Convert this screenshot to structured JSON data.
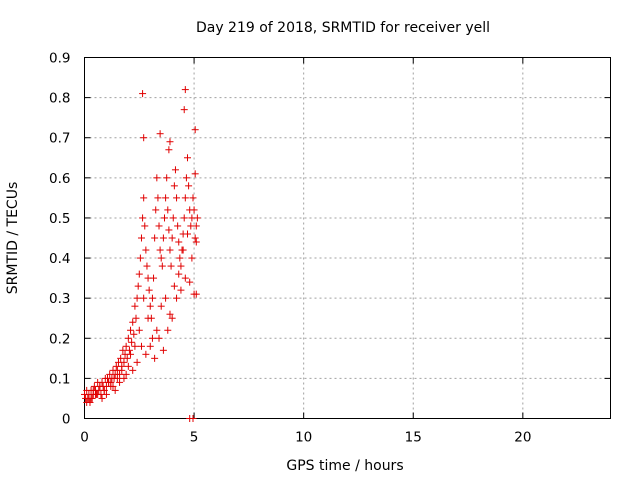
{
  "chart_data": {
    "type": "scatter",
    "title": "Day 219 of 2018, SRMTID for receiver yell",
    "xlabel": "GPS time / hours",
    "ylabel": "SRMTID / TECUs",
    "xlim": [
      0,
      24
    ],
    "ylim": [
      0,
      0.9
    ],
    "xticks": [
      0,
      5,
      10,
      15,
      20
    ],
    "yticks": [
      0,
      0.1,
      0.2,
      0.3,
      0.4,
      0.5,
      0.6,
      0.7,
      0.8,
      0.9
    ],
    "grid": true,
    "marker": "+",
    "color": "#e00000",
    "series": [
      {
        "name": "SRMTID",
        "x": [
          0.0,
          0.05,
          0.1,
          0.15,
          0.2,
          0.25,
          0.3,
          0.35,
          0.4,
          0.45,
          0.5,
          0.55,
          0.6,
          0.65,
          0.7,
          0.75,
          0.8,
          0.85,
          0.9,
          0.95,
          1.0,
          1.05,
          1.1,
          1.15,
          1.2,
          1.25,
          1.3,
          1.35,
          1.4,
          1.45,
          1.5,
          1.55,
          1.6,
          1.65,
          1.7,
          1.75,
          1.8,
          1.85,
          1.9,
          1.95,
          2.0,
          2.05,
          2.1,
          2.15,
          2.2,
          2.25,
          2.3,
          2.35,
          2.4,
          2.45,
          2.5,
          2.55,
          2.6,
          2.65,
          2.7,
          2.75,
          2.8,
          2.85,
          2.9,
          2.95,
          3.0,
          3.05,
          3.1,
          3.15,
          3.2,
          3.25,
          3.3,
          3.35,
          3.4,
          3.45,
          3.5,
          3.55,
          3.6,
          3.65,
          3.7,
          3.75,
          3.8,
          3.85,
          3.9,
          3.95,
          4.0,
          4.05,
          4.1,
          4.15,
          4.2,
          4.25,
          4.3,
          4.35,
          4.4,
          4.45,
          4.5,
          4.55,
          4.6,
          4.65,
          4.7,
          4.75,
          4.8,
          4.85,
          4.9,
          4.95,
          5.0,
          5.05,
          5.1,
          5.15,
          0.1,
          0.3,
          0.5,
          0.7,
          0.9,
          1.1,
          1.3,
          1.5,
          1.7,
          1.9,
          2.1,
          2.3,
          2.5,
          2.7,
          2.9,
          3.1,
          3.3,
          3.5,
          3.7,
          3.9,
          4.1,
          4.3,
          4.5,
          4.7,
          4.9,
          5.1,
          0.2,
          0.4,
          0.6,
          0.8,
          1.0,
          1.2,
          1.4,
          1.6,
          1.8,
          2.0,
          2.2,
          2.4,
          2.6,
          2.8,
          3.0,
          3.2,
          3.4,
          3.6,
          3.8,
          4.0,
          4.2,
          4.4,
          4.6,
          4.8,
          5.0,
          2.65,
          4.6,
          4.55,
          3.45,
          5.05,
          2.7,
          3.9,
          5.05,
          3.85,
          5.1,
          4.8,
          4.95
        ],
        "y": [
          0.06,
          0.05,
          0.07,
          0.05,
          0.06,
          0.04,
          0.07,
          0.05,
          0.06,
          0.08,
          0.07,
          0.06,
          0.09,
          0.07,
          0.08,
          0.06,
          0.09,
          0.08,
          0.07,
          0.1,
          0.08,
          0.1,
          0.09,
          0.11,
          0.09,
          0.1,
          0.12,
          0.1,
          0.11,
          0.13,
          0.12,
          0.14,
          0.11,
          0.15,
          0.13,
          0.17,
          0.14,
          0.16,
          0.18,
          0.15,
          0.2,
          0.17,
          0.22,
          0.19,
          0.24,
          0.21,
          0.28,
          0.25,
          0.3,
          0.33,
          0.36,
          0.4,
          0.45,
          0.5,
          0.55,
          0.48,
          0.42,
          0.38,
          0.35,
          0.32,
          0.28,
          0.25,
          0.3,
          0.35,
          0.45,
          0.52,
          0.6,
          0.55,
          0.48,
          0.42,
          0.4,
          0.38,
          0.45,
          0.5,
          0.55,
          0.6,
          0.52,
          0.47,
          0.42,
          0.38,
          0.45,
          0.5,
          0.58,
          0.62,
          0.55,
          0.48,
          0.44,
          0.4,
          0.38,
          0.42,
          0.46,
          0.5,
          0.55,
          0.6,
          0.65,
          0.58,
          0.52,
          0.48,
          0.5,
          0.55,
          0.52,
          0.45,
          0.48,
          0.5,
          0.04,
          0.05,
          0.06,
          0.08,
          0.07,
          0.09,
          0.08,
          0.1,
          0.12,
          0.11,
          0.16,
          0.18,
          0.22,
          0.3,
          0.25,
          0.2,
          0.22,
          0.28,
          0.3,
          0.26,
          0.33,
          0.36,
          0.42,
          0.46,
          0.4,
          0.44,
          0.05,
          0.07,
          0.06,
          0.05,
          0.06,
          0.08,
          0.07,
          0.09,
          0.1,
          0.13,
          0.12,
          0.14,
          0.18,
          0.16,
          0.18,
          0.15,
          0.2,
          0.17,
          0.22,
          0.25,
          0.3,
          0.32,
          0.35,
          0.34,
          0.31,
          0.81,
          0.82,
          0.77,
          0.71,
          0.72,
          0.7,
          0.69,
          0.61,
          0.67,
          0.31,
          0.0,
          0.0
        ]
      }
    ]
  }
}
